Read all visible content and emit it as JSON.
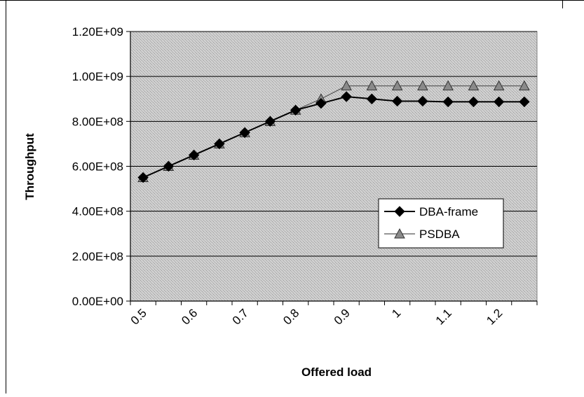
{
  "chart_data": {
    "type": "line",
    "title": "",
    "xlabel": "Offered load",
    "ylabel": "Throughput",
    "x": [
      0.525,
      0.575,
      0.625,
      0.675,
      0.725,
      0.775,
      0.825,
      0.875,
      0.925,
      0.975,
      1.025,
      1.075,
      1.125,
      1.175,
      1.225,
      1.275
    ],
    "x_ticks": [
      {
        "label": "0.5",
        "value": 0.525
      },
      {
        "label": "0.6",
        "value": 0.625
      },
      {
        "label": "0.7",
        "value": 0.725
      },
      {
        "label": "0.8",
        "value": 0.825
      },
      {
        "label": "0.9",
        "value": 0.925
      },
      {
        "label": "1",
        "value": 1.025
      },
      {
        "label": "1.1",
        "value": 1.125
      },
      {
        "label": "1.2",
        "value": 1.225
      }
    ],
    "y_ticks": [
      "0.00E+00",
      "2.00E+08",
      "4.00E+08",
      "6.00E+08",
      "8.00E+08",
      "1.00E+09",
      "1.20E+09"
    ],
    "ylim": [
      0,
      1200000000
    ],
    "grid": true,
    "legend_position": "right",
    "series": [
      {
        "name": "DBA-frame",
        "marker": "diamond",
        "color": "#000000",
        "values": [
          550000000,
          600000000,
          650000000,
          700000000,
          750000000,
          800000000,
          850000000,
          880000000,
          910000000,
          900000000,
          890000000,
          890000000,
          887000000,
          887000000,
          887000000,
          887000000
        ]
      },
      {
        "name": "PSDBA",
        "marker": "triangle",
        "color": "#555555",
        "values": [
          550000000,
          600000000,
          650000000,
          700000000,
          750000000,
          800000000,
          850000000,
          900000000,
          958000000,
          958000000,
          958000000,
          958000000,
          958000000,
          958000000,
          958000000,
          958000000
        ]
      }
    ]
  }
}
